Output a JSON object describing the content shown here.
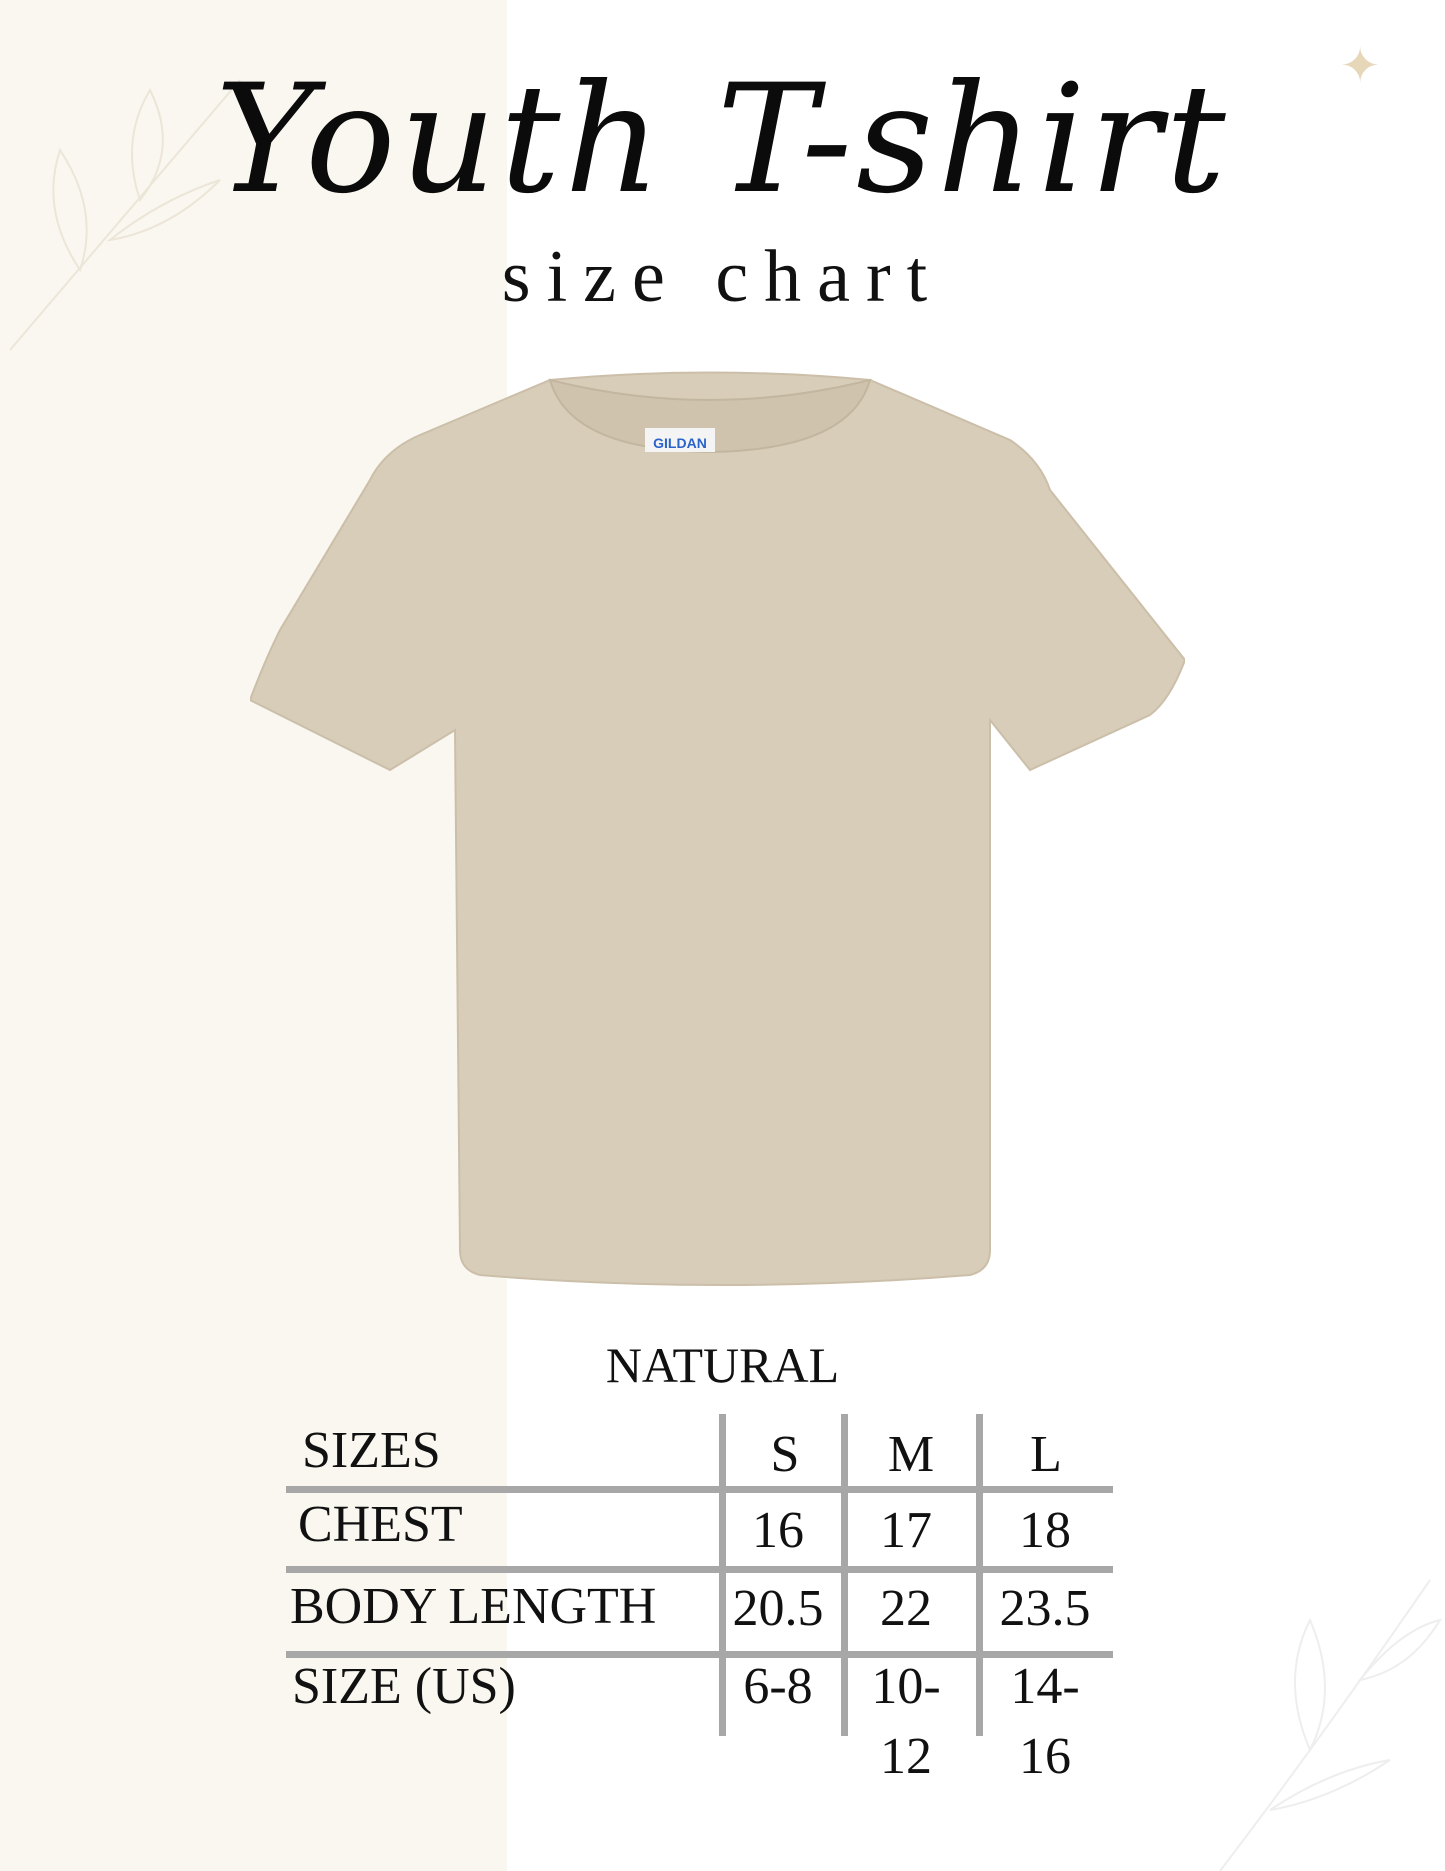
{
  "title": "Youth T-shirt",
  "subtitle": "size chart",
  "product": {
    "color_name": "NATURAL",
    "shirt_color": "#d8cdb9",
    "tag_text": "GILDAN"
  },
  "colors": {
    "left_panel": "#faf7f0",
    "grid_lines": "#a7a7a7",
    "text": "#111111"
  },
  "table": {
    "headers": [
      "SIZES",
      "S",
      "M",
      "L"
    ],
    "rows": [
      {
        "label": "CHEST",
        "values": [
          "16",
          "17",
          "18"
        ]
      },
      {
        "label": "BODY LENGTH",
        "values": [
          "20.5",
          "22",
          "23.5"
        ]
      },
      {
        "label": "SIZE (US)",
        "values": [
          "6-8",
          "10-12",
          "14-16"
        ]
      }
    ]
  },
  "decorations": {
    "star": "sparkle-icon"
  }
}
